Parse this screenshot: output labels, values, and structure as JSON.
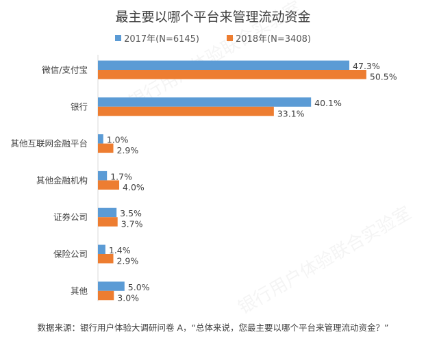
{
  "watermark": "银行用户体验联合实验室",
  "chart_data": {
    "type": "bar",
    "orientation": "horizontal",
    "title": "最主要以哪个平台来管理流动资金",
    "categories": [
      "微信/支付宝",
      "银行",
      "其他互联网金融平台",
      "其他金融机构",
      "证券公司",
      "保险公司",
      "其他"
    ],
    "series": [
      {
        "name": "2017年(N=6145)",
        "color": "#5b9bd5",
        "values": [
          47.3,
          40.1,
          1.0,
          1.7,
          3.5,
          1.4,
          5.0
        ],
        "labels": [
          "47.3%",
          "40.1%",
          "1.0%",
          "1.7%",
          "3.5%",
          "1.4%",
          "5.0%"
        ]
      },
      {
        "name": "2018年(N=3408)",
        "color": "#ed7d31",
        "values": [
          50.5,
          33.1,
          2.9,
          4.0,
          3.7,
          2.9,
          3.0
        ],
        "labels": [
          "50.5%",
          "33.1%",
          "2.9%",
          "4.0%",
          "3.7%",
          "2.9%",
          "3.0%"
        ]
      }
    ],
    "xlim": [
      0,
      55
    ],
    "unit": "%",
    "grid": false,
    "legend_position": "top",
    "source": "数据来源：银行用户体验大调研问卷 A，“总体来说，您最主要以哪个平台来管理流动资金？”"
  }
}
